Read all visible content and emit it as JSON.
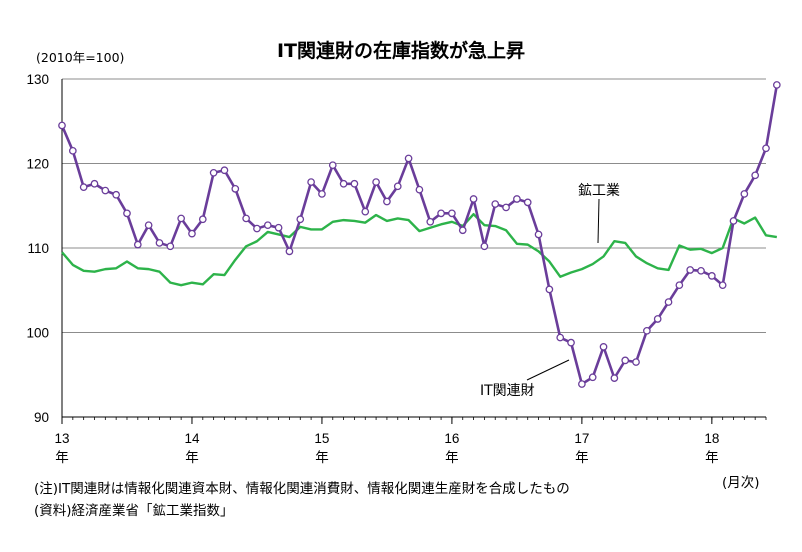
{
  "chart_data": {
    "type": "line",
    "title": "IT関連財の在庫指数が急上昇",
    "unit_label": "(2010年=100)",
    "x_unit_label": "(月次)",
    "ylim": [
      90,
      130
    ],
    "yticks": [
      90,
      100,
      110,
      120,
      130
    ],
    "x_start": "2013-01",
    "x_end": "2018-06",
    "x_ticks": [
      {
        "year": "13",
        "suffix": "年",
        "date": "2013-01"
      },
      {
        "year": "14",
        "suffix": "年",
        "date": "2014-01"
      },
      {
        "year": "15",
        "suffix": "年",
        "date": "2015-01"
      },
      {
        "year": "16",
        "suffix": "年",
        "date": "2016-01"
      },
      {
        "year": "17",
        "suffix": "年",
        "date": "2017-01"
      },
      {
        "year": "18",
        "suffix": "年",
        "date": "2018-01"
      }
    ],
    "grid": true,
    "legend": "inline labels",
    "series": [
      {
        "name": "IT関連財",
        "color": "#6a3d9a",
        "marker": "circle",
        "values": [
          124.5,
          121.5,
          117.2,
          117.6,
          116.8,
          116.3,
          114.1,
          110.4,
          112.7,
          110.6,
          110.2,
          113.5,
          111.7,
          113.4,
          118.9,
          119.2,
          117.0,
          113.5,
          112.3,
          112.7,
          112.4,
          109.6,
          113.4,
          117.8,
          116.4,
          119.8,
          117.6,
          117.6,
          114.3,
          117.8,
          115.5,
          117.3,
          120.6,
          116.9,
          113.1,
          114.1,
          114.1,
          112.1,
          115.8,
          110.2,
          115.2,
          114.8,
          115.8,
          115.4,
          111.6,
          105.1,
          99.4,
          98.8,
          93.9,
          94.7,
          98.3,
          94.6,
          96.7,
          96.5,
          100.2,
          101.6,
          103.6,
          105.6,
          107.4,
          107.3,
          106.7,
          105.6,
          113.2,
          116.4,
          118.6,
          121.8,
          129.3
        ]
      },
      {
        "name": "鉱工業",
        "color": "#2db34a",
        "marker": "none",
        "values": [
          109.5,
          108.0,
          107.3,
          107.2,
          107.5,
          107.6,
          108.4,
          107.6,
          107.5,
          107.2,
          105.9,
          105.6,
          105.9,
          105.7,
          106.9,
          106.8,
          108.6,
          110.2,
          110.8,
          111.9,
          111.6,
          111.3,
          112.5,
          112.2,
          112.2,
          113.1,
          113.3,
          113.2,
          113.0,
          113.9,
          113.2,
          113.5,
          113.3,
          112.0,
          112.4,
          112.8,
          113.1,
          112.6,
          114.0,
          112.7,
          112.6,
          112.1,
          110.5,
          110.4,
          109.6,
          108.4,
          106.6,
          107.1,
          107.5,
          108.1,
          109.0,
          110.8,
          110.6,
          109.0,
          108.2,
          107.6,
          107.4,
          110.3,
          109.8,
          109.9,
          109.4,
          110.0,
          113.5,
          112.9,
          113.6,
          111.5,
          111.3
        ]
      }
    ],
    "annotations": [
      {
        "text": "鉱工業",
        "series": "鉱工業"
      },
      {
        "text": "IT関連財",
        "series": "IT関連財"
      }
    ]
  },
  "notes": {
    "note": "(注)IT関連財は情報化関連資本財、情報化関連消費財、情報化関連生産財を合成したもの",
    "source": "(資料)経済産業省「鉱工業指数」"
  }
}
